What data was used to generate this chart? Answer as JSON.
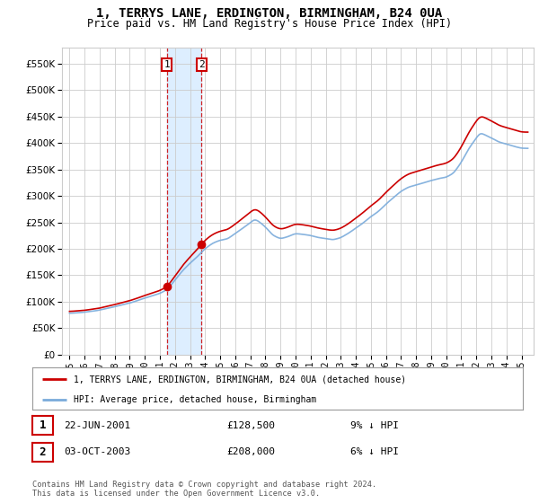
{
  "title": "1, TERRYS LANE, ERDINGTON, BIRMINGHAM, B24 0UA",
  "subtitle": "Price paid vs. HM Land Registry's House Price Index (HPI)",
  "ytick_vals": [
    0,
    50000,
    100000,
    150000,
    200000,
    250000,
    300000,
    350000,
    400000,
    450000,
    500000,
    550000
  ],
  "ylim": [
    0,
    580000
  ],
  "point1_year": 2001.46,
  "point1_price": 128500,
  "point2_year": 2003.75,
  "point2_price": 208000,
  "point1_date": "22-JUN-2001",
  "point1_hpi_text": "9% ↓ HPI",
  "point2_date": "03-OCT-2003",
  "point2_hpi_text": "6% ↓ HPI",
  "legend_line1": "1, TERRYS LANE, ERDINGTON, BIRMINGHAM, B24 0UA (detached house)",
  "legend_line2": "HPI: Average price, detached house, Birmingham",
  "footer": "Contains HM Land Registry data © Crown copyright and database right 2024.\nThis data is licensed under the Open Government Licence v3.0.",
  "red_color": "#cc0000",
  "blue_color": "#7aabdb",
  "highlight_color": "#ddeeff",
  "grid_color": "#cccccc",
  "bg_color": "#ffffff",
  "xlim_left": 1994.5,
  "xlim_right": 2025.8
}
